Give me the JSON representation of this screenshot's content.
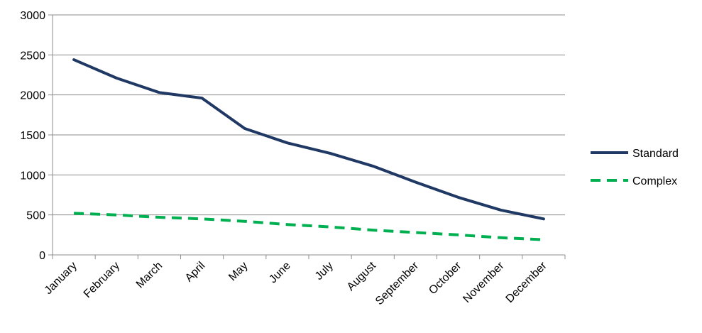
{
  "chart_data": {
    "type": "line",
    "title": "",
    "xlabel": "",
    "ylabel": "",
    "categories": [
      "January",
      "February",
      "March",
      "April",
      "May",
      "June",
      "July",
      "August",
      "September",
      "October",
      "November",
      "December"
    ],
    "y_ticks": [
      "0",
      "500",
      "1000",
      "1500",
      "2000",
      "2500",
      "3000"
    ],
    "ylim": [
      0,
      3000
    ],
    "grid": true,
    "legend_position": "right",
    "series": [
      {
        "name": "Standard",
        "color": "#1f3864",
        "line_style": "solid",
        "values": [
          2440,
          2210,
          2030,
          1960,
          1580,
          1400,
          1270,
          1110,
          910,
          720,
          560,
          450
        ]
      },
      {
        "name": "Complex",
        "color": "#00b050",
        "line_style": "dashed",
        "values": [
          520,
          500,
          470,
          450,
          420,
          380,
          350,
          310,
          280,
          250,
          215,
          190
        ]
      }
    ]
  }
}
